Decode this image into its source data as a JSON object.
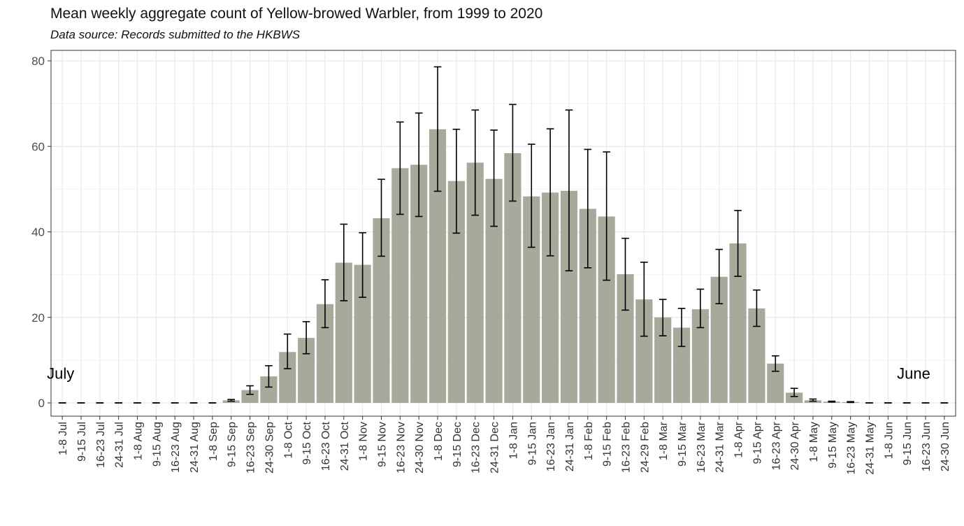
{
  "chart_data": {
    "type": "bar",
    "title": "Mean weekly aggregate count of Yellow-browed Warbler, from 1999 to 2020",
    "subtitle": "Data source: Records submitted to the HKBWS",
    "xlabel": "",
    "ylabel": "",
    "ylim": [
      0,
      82
    ],
    "y_ticks": [
      0,
      20,
      40,
      60,
      80
    ],
    "grid": true,
    "bar_color": "#a7a99b",
    "error_bar_color": "#000000",
    "categories": [
      "1-8 Jul",
      "9-15 Jul",
      "16-23 Jul",
      "24-31 Jul",
      "1-8 Aug",
      "9-15 Aug",
      "16-23 Aug",
      "24-31 Aug",
      "1-8 Sep",
      "9-15 Sep",
      "16-23 Sep",
      "24-30 Sep",
      "1-8 Oct",
      "9-15 Oct",
      "16-23 Oct",
      "24-31 Oct",
      "1-8 Nov",
      "9-15 Nov",
      "16-23 Nov",
      "24-30 Nov",
      "1-8 Dec",
      "9-15 Dec",
      "16-23 Dec",
      "24-31 Dec",
      "1-8 Jan",
      "9-15 Jan",
      "16-23 Jan",
      "24-31 Jan",
      "1-8 Feb",
      "9-15 Feb",
      "16-23 Feb",
      "24-29 Feb",
      "1-8 Mar",
      "9-15 Mar",
      "16-23 Mar",
      "24-31 Mar",
      "1-8 Apr",
      "9-15 Apr",
      "16-23 Apr",
      "24-30 Apr",
      "1-8 May",
      "9-15 May",
      "16-23 May",
      "24-31 May",
      "1-8 Jun",
      "9-15 Jun",
      "16-23 Jun",
      "24-30 Jun"
    ],
    "values": [
      0,
      0,
      0,
      0,
      0,
      0,
      0,
      0,
      0,
      0.6,
      3.0,
      6.2,
      11.9,
      15.2,
      23.1,
      32.8,
      32.3,
      43.2,
      54.9,
      55.7,
      64.0,
      51.9,
      56.2,
      52.4,
      58.4,
      48.3,
      49.2,
      49.6,
      45.4,
      43.6,
      30.1,
      24.2,
      20.0,
      17.6,
      21.9,
      29.5,
      37.3,
      22.1,
      9.2,
      2.4,
      0.6,
      0.3,
      0.2,
      0,
      0,
      0,
      0,
      0
    ],
    "error_low": [
      0,
      0,
      0,
      0,
      0,
      0,
      0,
      0,
      0,
      0.4,
      2.0,
      3.7,
      8.0,
      11.5,
      17.6,
      23.9,
      24.7,
      34.3,
      44.1,
      43.6,
      49.5,
      39.7,
      43.9,
      41.3,
      47.2,
      36.4,
      34.4,
      30.9,
      31.6,
      28.7,
      21.7,
      15.6,
      15.7,
      13.2,
      17.6,
      23.2,
      29.6,
      17.9,
      7.4,
      1.5,
      0.4,
      0.2,
      0.1,
      0,
      0,
      0,
      0,
      0
    ],
    "error_high": [
      0,
      0,
      0,
      0,
      0,
      0,
      0,
      0,
      0,
      0.8,
      4.0,
      8.7,
      16.1,
      19.0,
      28.8,
      41.8,
      39.8,
      52.3,
      65.7,
      67.8,
      78.6,
      64.0,
      68.5,
      63.8,
      69.8,
      60.5,
      64.1,
      68.5,
      59.3,
      58.7,
      38.5,
      32.9,
      24.2,
      22.1,
      26.6,
      35.9,
      45.0,
      26.4,
      11.0,
      3.4,
      0.9,
      0.4,
      0.3,
      0,
      0,
      0,
      0,
      0
    ],
    "annotations": [
      {
        "text": "July",
        "x_category": "1-8 Jul",
        "y": 6
      },
      {
        "text": "June",
        "x_category": "24-30 Jun",
        "y": 6
      }
    ]
  }
}
